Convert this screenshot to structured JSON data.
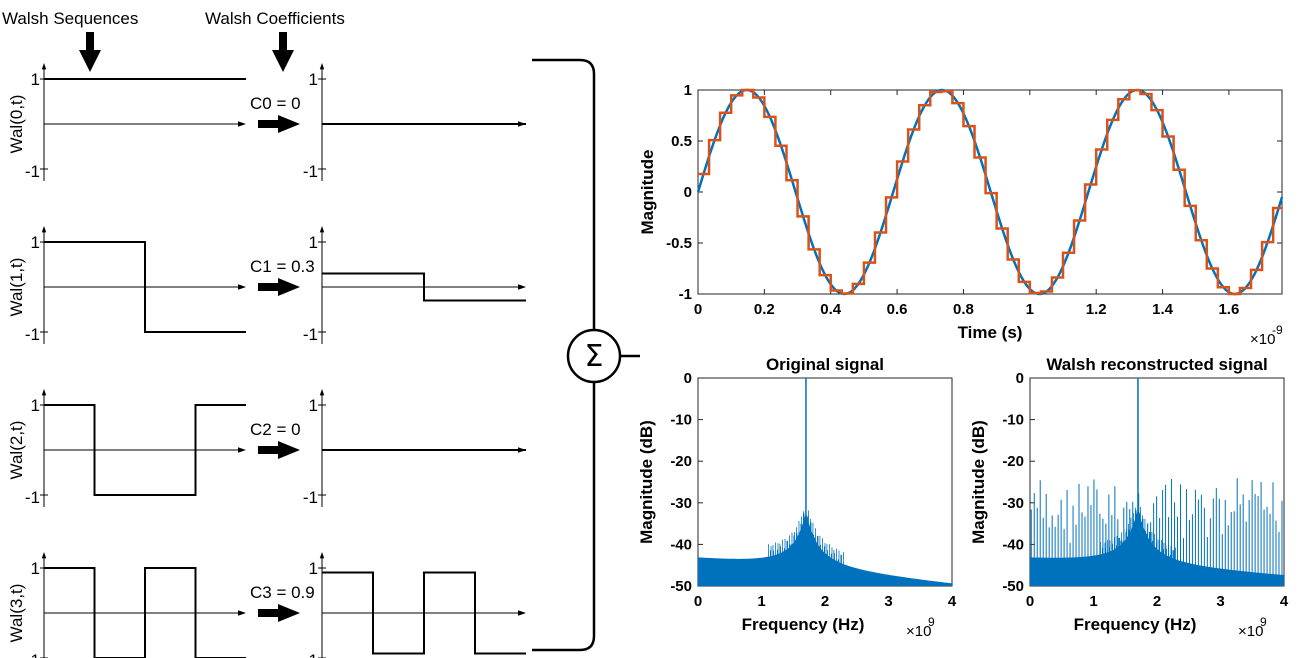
{
  "diagram": {
    "header_sequences": "Walsh Sequences",
    "header_coefficients": "Walsh Coefficients",
    "sum_symbol": "Σ",
    "rows": [
      {
        "ylabel": "Wal(0,t)",
        "coef_label": "C0 = 0",
        "coef": 0,
        "pattern": [
          1,
          1,
          1,
          1,
          1,
          1,
          1,
          1
        ],
        "tick_top": "1",
        "tick_bottom": "-1"
      },
      {
        "ylabel": "Wal(1,t)",
        "coef_label": "C1 = 0.3",
        "coef": 0.3,
        "pattern": [
          1,
          1,
          1,
          1,
          -1,
          -1,
          -1,
          -1
        ],
        "tick_top": "1",
        "tick_bottom": "-1"
      },
      {
        "ylabel": "Wal(2,t)",
        "coef_label": "C2 = 0",
        "coef": 0,
        "pattern": [
          1,
          1,
          -1,
          -1,
          -1,
          -1,
          1,
          1
        ],
        "tick_top": "1",
        "tick_bottom": "-1"
      },
      {
        "ylabel": "Wal(3,t)",
        "coef_label": "C3 = 0.9",
        "coef": 0.9,
        "pattern": [
          1,
          1,
          -1,
          -1,
          1,
          1,
          -1,
          -1
        ],
        "tick_top": "1",
        "tick_bottom": "-1"
      }
    ]
  },
  "chart_data": [
    {
      "type": "line",
      "title": "",
      "xlabel": "Time (s)",
      "ylabel": "Magnitude",
      "xlim": [
        0,
        1.76
      ],
      "ylim": [
        -1,
        1
      ],
      "x_exponent": "×10",
      "x_exponent_power": "-9",
      "x_ticks": [
        "0",
        "0.2",
        "0.4",
        "0.6",
        "0.8",
        "1",
        "1.2",
        "1.4",
        "1.6"
      ],
      "y_ticks": [
        "1",
        "0.5",
        "0",
        "-0.5",
        "-1"
      ],
      "series": [
        {
          "color": "#0072BD",
          "kind": "sine",
          "frequency_ghz": 1.7
        },
        {
          "color": "#D95319",
          "kind": "walsh-staircase",
          "steps_per_unit": 30
        }
      ]
    },
    {
      "type": "area",
      "title": "Original signal",
      "xlabel": "Frequency (Hz)",
      "ylabel": "Magnitude (dB)",
      "xlim": [
        0,
        4
      ],
      "ylim": [
        -50,
        0
      ],
      "x_exponent": "×10",
      "x_exponent_power": "9",
      "x_ticks": [
        "0",
        "1",
        "2",
        "3",
        "4"
      ],
      "y_ticks": [
        "0",
        "-10",
        "-20",
        "-30",
        "-40",
        "-50"
      ],
      "peak_frequency": 1.7,
      "peak_value": 0,
      "floor_at_0": -44,
      "floor_at_4": -50,
      "color": "#0072BD"
    },
    {
      "type": "area",
      "title": "Walsh reconstructed signal",
      "xlabel": "Frequency (Hz)",
      "ylabel": "Magnitude (dB)",
      "xlim": [
        0,
        4
      ],
      "ylim": [
        -50,
        0
      ],
      "x_exponent": "×10",
      "x_exponent_power": "9",
      "x_ticks": [
        "0",
        "1",
        "2",
        "3",
        "4"
      ],
      "y_ticks": [
        "0",
        "-10",
        "-20",
        "-30",
        "-40",
        "-50"
      ],
      "peak_frequency": 1.7,
      "peak_value": 0,
      "floor_at_0": -44,
      "floor_at_4": -48,
      "spur_level": -27,
      "color": "#0072BD"
    }
  ]
}
